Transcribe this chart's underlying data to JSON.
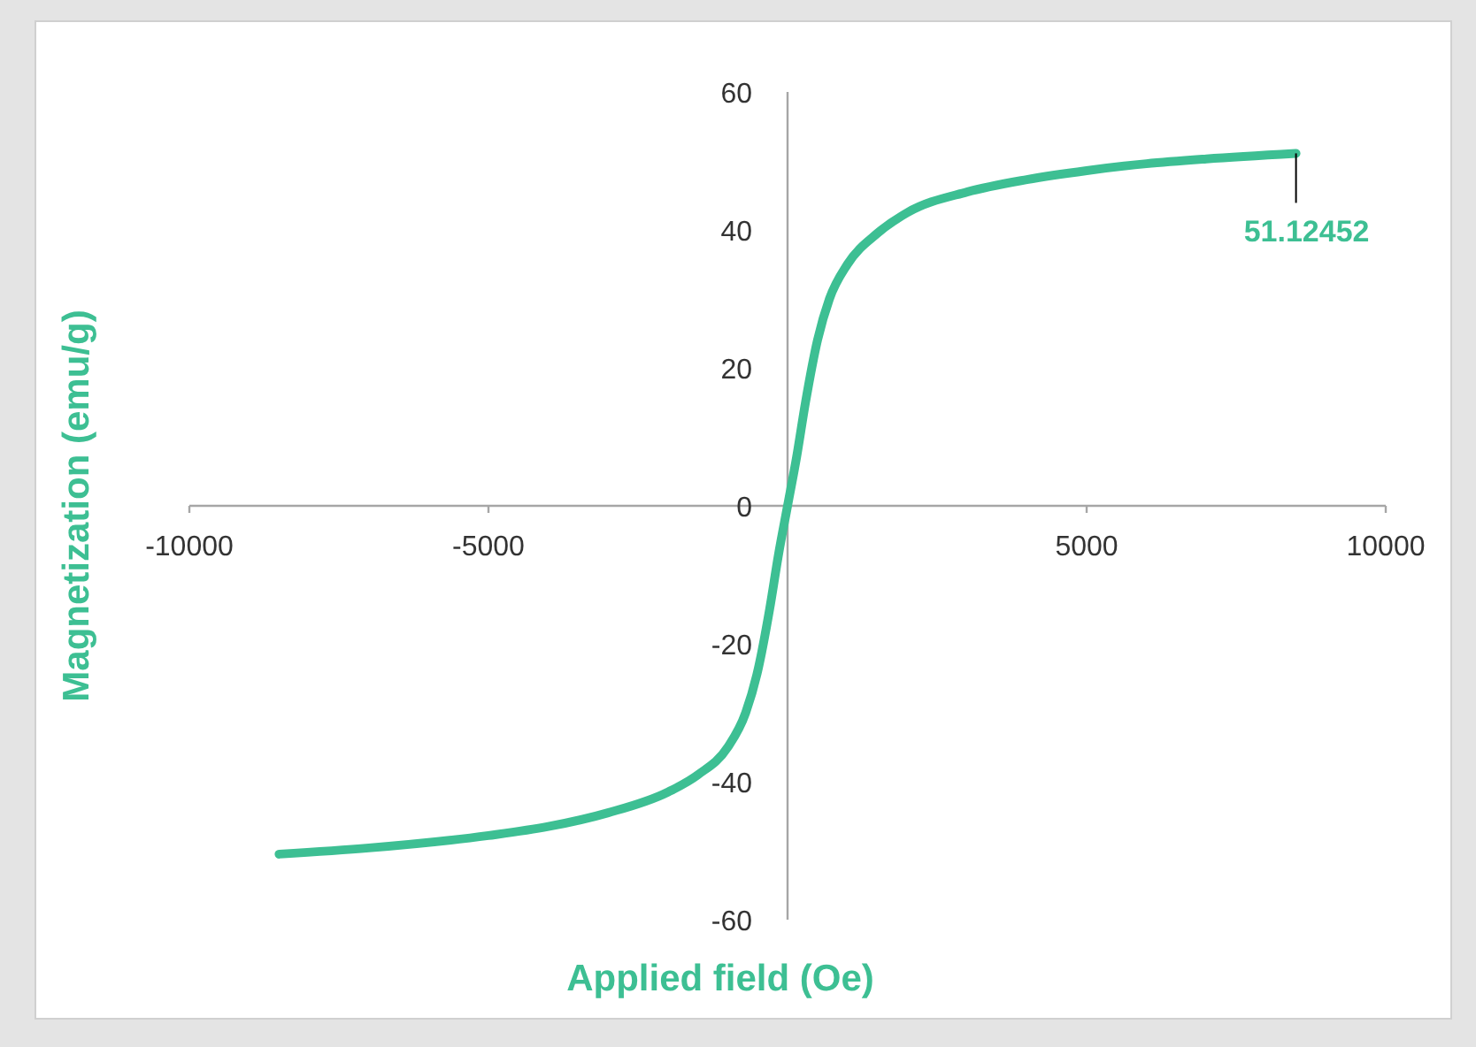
{
  "chart_data": {
    "type": "line",
    "xlabel": "Applied field (Oe)",
    "ylabel": "Magnetization (emu/g)",
    "xlim": [
      -10000,
      10000
    ],
    "xticks": [
      -10000,
      -5000,
      {
        "value": 0,
        "label": null
      },
      5000,
      10000
    ],
    "ylim": [
      -60,
      60
    ],
    "yticks": [
      -60,
      -40,
      -20,
      0,
      20,
      40,
      60
    ],
    "grid": false,
    "marker": "none",
    "line_style": "solid",
    "series": [
      {
        "color": "#3dbf93",
        "x": [
          -8500,
          -7000,
          -5000,
          -4000,
          -3000,
          -2000,
          -1500,
          -1000,
          -700,
          -500,
          -300,
          -150,
          0,
          150,
          300,
          500,
          700,
          1000,
          1500,
          2000,
          3000,
          4000,
          5000,
          6000,
          7000,
          8500
        ],
        "values": [
          -50.5,
          -49.6,
          -47.8,
          -46.5,
          -44.5,
          -41.5,
          -39,
          -35,
          -30,
          -24,
          -15,
          -7,
          0,
          7,
          15,
          24,
          30,
          35,
          39.5,
          42.5,
          45.5,
          47.3,
          48.6,
          49.6,
          50.3,
          51.1
        ]
      }
    ],
    "annotations": [
      {
        "text": "51.12452",
        "x": 8500,
        "y": 51.1
      }
    ]
  }
}
